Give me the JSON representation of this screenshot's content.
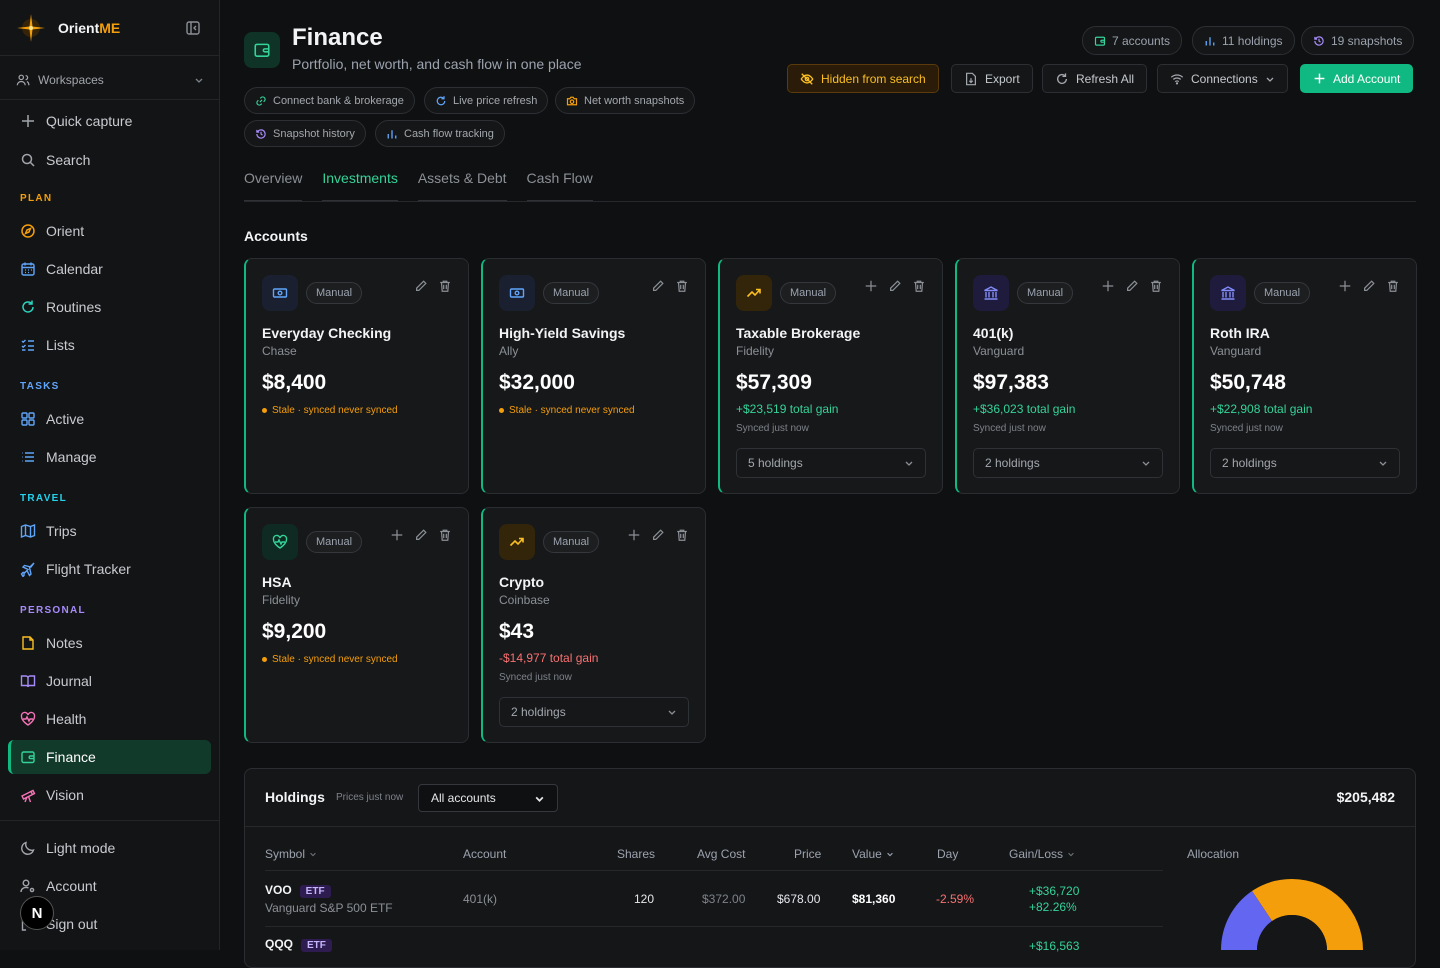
{
  "app": {
    "name_prefix": "Orient",
    "name_suffix": "ME"
  },
  "sidebar": {
    "workspaces": "Workspaces",
    "quick_capture": "Quick capture",
    "search": "Search",
    "sections": {
      "plan": "PLAN",
      "tasks": "TASKS",
      "travel": "TRAVEL",
      "personal": "PERSONAL"
    },
    "plan": [
      {
        "label": "Orient",
        "icon": "compass-icon"
      },
      {
        "label": "Calendar",
        "icon": "calendar-icon"
      },
      {
        "label": "Routines",
        "icon": "refresh-icon"
      },
      {
        "label": "Lists",
        "icon": "checklist-icon"
      }
    ],
    "tasks": [
      {
        "label": "Active",
        "icon": "grid-icon"
      },
      {
        "label": "Manage",
        "icon": "list-icon"
      }
    ],
    "travel": [
      {
        "label": "Trips",
        "icon": "map-icon"
      },
      {
        "label": "Flight Tracker",
        "icon": "plane-icon"
      }
    ],
    "personal": [
      {
        "label": "Notes",
        "icon": "note-icon"
      },
      {
        "label": "Journal",
        "icon": "book-icon"
      },
      {
        "label": "Health",
        "icon": "heart-pulse-icon"
      },
      {
        "label": "Finance",
        "icon": "wallet-icon",
        "active": true
      },
      {
        "label": "Vision",
        "icon": "telescope-icon"
      }
    ],
    "footer": {
      "light_mode": "Light mode",
      "account": "Account",
      "sign_out": "Sign out",
      "avatar_letter": "N"
    }
  },
  "header": {
    "title": "Finance",
    "subtitle": "Portfolio, net worth, and cash flow in one place",
    "chips": [
      "Connect bank & brokerage",
      "Live price refresh",
      "Net worth snapshots",
      "Snapshot history",
      "Cash flow tracking"
    ],
    "stats": {
      "accounts": "7 accounts",
      "holdings": "11 holdings",
      "snapshots": "19 snapshots"
    },
    "buttons": {
      "hidden": "Hidden from search",
      "export": "Export",
      "refresh": "Refresh All",
      "connections": "Connections",
      "add": "Add Account"
    }
  },
  "tabs": [
    {
      "label": "Overview"
    },
    {
      "label": "Investments",
      "active": true
    },
    {
      "label": "Assets & Debt"
    },
    {
      "label": "Cash Flow"
    }
  ],
  "accounts_title": "Accounts",
  "accounts": [
    {
      "name": "Everyday Checking",
      "institution": "Chase",
      "badge": "Manual",
      "balance": "$8,400",
      "status": "Stale · synced never synced",
      "icon": "cash-icon"
    },
    {
      "name": "High-Yield Savings",
      "institution": "Ally",
      "badge": "Manual",
      "balance": "$32,000",
      "status": "Stale · synced never synced",
      "icon": "cash-icon"
    },
    {
      "name": "Taxable Brokerage",
      "institution": "Fidelity",
      "badge": "Manual",
      "balance": "$57,309",
      "gain": "+$23,519 total gain",
      "sync": "Synced just now",
      "holdings": "5 holdings",
      "icon": "trending-up-icon"
    },
    {
      "name": "401(k)",
      "institution": "Vanguard",
      "badge": "Manual",
      "balance": "$97,383",
      "gain": "+$36,023 total gain",
      "sync": "Synced just now",
      "holdings": "2 holdings",
      "icon": "bank-icon"
    },
    {
      "name": "Roth IRA",
      "institution": "Vanguard",
      "badge": "Manual",
      "balance": "$50,748",
      "gain": "+$22,908 total gain",
      "sync": "Synced just now",
      "holdings": "2 holdings",
      "icon": "bank-icon"
    },
    {
      "name": "HSA",
      "institution": "Fidelity",
      "badge": "Manual",
      "balance": "$9,200",
      "status": "Stale · synced never synced",
      "icon": "heart-pulse-icon"
    },
    {
      "name": "Crypto",
      "institution": "Coinbase",
      "badge": "Manual",
      "balance": "$43",
      "gain": "-$14,977 total gain",
      "sync": "Synced just now",
      "holdings": "2 holdings",
      "icon": "trending-up-icon"
    }
  ],
  "holdings": {
    "title": "Holdings",
    "prices": "Prices just now",
    "filter": "All accounts",
    "total": "$205,482",
    "columns": [
      "Symbol",
      "Account",
      "Shares",
      "Avg Cost",
      "Price",
      "Value",
      "Day",
      "Gain/Loss"
    ],
    "allocation": "Allocation",
    "rows": [
      {
        "symbol": "VOO",
        "type": "ETF",
        "name": "Vanguard S&P 500 ETF",
        "account": "401(k)",
        "shares": "120",
        "avg_cost": "$372.00",
        "price": "$678.00",
        "value": "$81,360",
        "day": "-2.59%",
        "gain": "+$36,720",
        "gain_pct": "+82.26%"
      },
      {
        "symbol": "QQQ",
        "type": "ETF",
        "gain": "+$16,563"
      }
    ]
  },
  "colors": {
    "accent": "#10b981",
    "warn": "#f59e0b",
    "loss": "#f87171",
    "gain": "#34d399",
    "purple": "#6366f1"
  }
}
